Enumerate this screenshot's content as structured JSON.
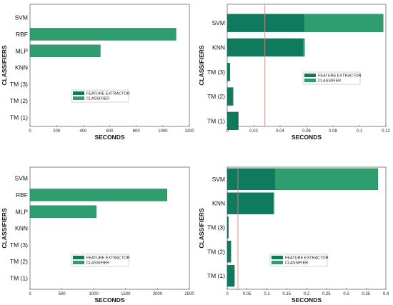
{
  "colors": {
    "feature_extractor": "#0f7a5d",
    "classifier": "#2e9e6e",
    "frame": "#666666",
    "reference_line": "#d98a80"
  },
  "chart_data": [
    {
      "type": "bar",
      "orientation": "horizontal",
      "stacked": true,
      "categories": [
        "SVM",
        "RBF",
        "MLP",
        "KNN",
        "TM (3)",
        "TM (2)",
        "TM (1)"
      ],
      "series": [
        {
          "name": "FEATURE EXTRACTOR",
          "values": [
            0,
            0,
            0,
            0,
            0,
            0,
            0
          ]
        },
        {
          "name": "CLASSIFIER",
          "values": [
            0,
            1100,
            530,
            0,
            0,
            0,
            0
          ]
        }
      ],
      "xlabel": "SECONDS",
      "ylabel": "CLASSIFIERS",
      "xlim": [
        0,
        1200
      ],
      "xticks": [
        0,
        200,
        400,
        600,
        800,
        1000,
        1200
      ],
      "legend": "center-right"
    },
    {
      "type": "bar",
      "orientation": "horizontal",
      "stacked": true,
      "categories": [
        "SVM",
        "KNN",
        "TM (3)",
        "TM (2)",
        "TM (1)"
      ],
      "series": [
        {
          "name": "FEATURE EXTRACTOR",
          "values": [
            0.058,
            0.057,
            0.002,
            0.004,
            0.008
          ]
        },
        {
          "name": "CLASSIFIER",
          "values": [
            0.06,
            0.0015,
            0.0,
            0.0005,
            0.0002
          ]
        }
      ],
      "reference_line_x": 0.0285,
      "xlabel": "SECONDS",
      "ylabel": "CLASSIFIERS",
      "xlim": [
        0,
        0.12
      ],
      "xticks": [
        "0",
        "0.02",
        "0.04",
        "0.06",
        "0.08",
        "0.1",
        "0.12"
      ],
      "legend": "center-right"
    },
    {
      "type": "bar",
      "orientation": "horizontal",
      "stacked": true,
      "categories": [
        "SVM",
        "RBF",
        "MLP",
        "KNN",
        "TM (3)",
        "TM (2)",
        "TM (1)"
      ],
      "series": [
        {
          "name": "FEATURE EXTRACTOR",
          "values": [
            0,
            0,
            0,
            0,
            0,
            0,
            0
          ]
        },
        {
          "name": "CLASSIFIER",
          "values": [
            0,
            2150,
            1040,
            0,
            0,
            0,
            0
          ]
        }
      ],
      "xlabel": "SECONDS",
      "ylabel": "CLASSIFIERS",
      "xlim": [
        0,
        2500
      ],
      "xticks": [
        0,
        500,
        1000,
        1500,
        2000,
        2500
      ],
      "legend": "center-right"
    },
    {
      "type": "bar",
      "orientation": "horizontal",
      "stacked": true,
      "categories": [
        "SVM",
        "KNN",
        "TM (3)",
        "TM (2)",
        "TM (1)"
      ],
      "series": [
        {
          "name": "FEATURE EXTRACTOR",
          "values": [
            0.12,
            0.115,
            0.003,
            0.008,
            0.017
          ]
        },
        {
          "name": "CLASSIFIER",
          "values": [
            0.26,
            0.003,
            0.0,
            0.001,
            0.0005
          ]
        }
      ],
      "reference_line_x": 0.027,
      "xlabel": "SECONDS",
      "ylabel": "CLASSIFIERS",
      "xlim": [
        0,
        0.4
      ],
      "xticks": [
        "0",
        "0.05",
        "0.1",
        "0.15",
        "0.2",
        "0.25",
        "0.3",
        "0.35",
        "0.4"
      ],
      "legend": "center-right"
    }
  ]
}
